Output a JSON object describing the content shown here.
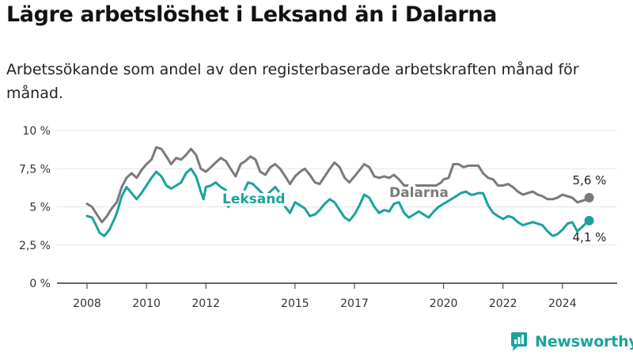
{
  "title": "Lägre arbetslöshet i Leksand än i Dalarna",
  "subtitle": "Arbetssökande som andel av den registerbaserade arbetskraften månad för månad.",
  "brand": {
    "name": "Newsworthy",
    "icon": "newsworthy-logo-icon"
  },
  "colors": {
    "leksand": "#1aa39b",
    "dalarna": "#7a7a7a",
    "axis": "#333333",
    "grid": "#e6e6e6"
  },
  "chart_data": {
    "type": "line",
    "x_range": [
      2008,
      2024.9
    ],
    "ylim": [
      0,
      10
    ],
    "y_ticks": [
      0,
      2.5,
      5,
      7.5,
      10
    ],
    "y_tick_labels": [
      "0 %",
      "2,5 %",
      "5 %",
      "7,5 %",
      "10 %"
    ],
    "x_ticks": [
      2008,
      2010,
      2012,
      2015,
      2017,
      2020,
      2022,
      2024
    ],
    "x_tick_labels": [
      "2008",
      "2010",
      "2012",
      "2015",
      "2017",
      "2020",
      "2022",
      "2024"
    ],
    "grid": "horizontal",
    "series": [
      {
        "name": "Dalarna",
        "key": "dalarna",
        "end_label": "5,6 %",
        "points": [
          [
            2008.0,
            5.2
          ],
          [
            2008.17,
            5.0
          ],
          [
            2008.33,
            4.5
          ],
          [
            2008.5,
            4.0
          ],
          [
            2008.67,
            4.4
          ],
          [
            2008.83,
            4.9
          ],
          [
            2009.0,
            5.3
          ],
          [
            2009.17,
            6.3
          ],
          [
            2009.33,
            6.9
          ],
          [
            2009.5,
            7.2
          ],
          [
            2009.67,
            6.9
          ],
          [
            2009.83,
            7.4
          ],
          [
            2010.0,
            7.8
          ],
          [
            2010.17,
            8.1
          ],
          [
            2010.33,
            8.9
          ],
          [
            2010.5,
            8.8
          ],
          [
            2010.67,
            8.3
          ],
          [
            2010.83,
            7.8
          ],
          [
            2011.0,
            8.2
          ],
          [
            2011.17,
            8.1
          ],
          [
            2011.33,
            8.4
          ],
          [
            2011.5,
            8.8
          ],
          [
            2011.67,
            8.4
          ],
          [
            2011.83,
            7.5
          ],
          [
            2012.0,
            7.3
          ],
          [
            2012.17,
            7.6
          ],
          [
            2012.33,
            7.9
          ],
          [
            2012.5,
            8.2
          ],
          [
            2012.67,
            8.0
          ],
          [
            2012.83,
            7.5
          ],
          [
            2013.0,
            7.0
          ],
          [
            2013.17,
            7.8
          ],
          [
            2013.33,
            8.0
          ],
          [
            2013.5,
            8.3
          ],
          [
            2013.67,
            8.1
          ],
          [
            2013.83,
            7.3
          ],
          [
            2014.0,
            7.1
          ],
          [
            2014.17,
            7.6
          ],
          [
            2014.33,
            7.8
          ],
          [
            2014.5,
            7.5
          ],
          [
            2014.67,
            7.0
          ],
          [
            2014.83,
            6.5
          ],
          [
            2015.0,
            7.0
          ],
          [
            2015.17,
            7.3
          ],
          [
            2015.33,
            7.5
          ],
          [
            2015.5,
            7.1
          ],
          [
            2015.67,
            6.6
          ],
          [
            2015.83,
            6.5
          ],
          [
            2016.0,
            7.0
          ],
          [
            2016.17,
            7.5
          ],
          [
            2016.33,
            7.9
          ],
          [
            2016.5,
            7.6
          ],
          [
            2016.67,
            6.9
          ],
          [
            2016.83,
            6.6
          ],
          [
            2017.0,
            7.0
          ],
          [
            2017.17,
            7.4
          ],
          [
            2017.33,
            7.8
          ],
          [
            2017.5,
            7.6
          ],
          [
            2017.67,
            7.0
          ],
          [
            2017.83,
            6.9
          ],
          [
            2018.0,
            7.0
          ],
          [
            2018.17,
            6.9
          ],
          [
            2018.33,
            7.1
          ],
          [
            2018.5,
            6.8
          ],
          [
            2018.67,
            6.4
          ],
          [
            2019.75,
            6.4
          ],
          [
            2019.92,
            6.6
          ],
          [
            2020.0,
            6.8
          ],
          [
            2020.17,
            6.9
          ],
          [
            2020.33,
            7.8
          ],
          [
            2020.5,
            7.8
          ],
          [
            2020.67,
            7.6
          ],
          [
            2020.83,
            7.7
          ],
          [
            2021.0,
            7.7
          ],
          [
            2021.17,
            7.7
          ],
          [
            2021.33,
            7.2
          ],
          [
            2021.5,
            6.9
          ],
          [
            2021.67,
            6.8
          ],
          [
            2021.83,
            6.4
          ],
          [
            2022.0,
            6.4
          ],
          [
            2022.17,
            6.5
          ],
          [
            2022.33,
            6.3
          ],
          [
            2022.5,
            6.0
          ],
          [
            2022.67,
            5.8
          ],
          [
            2022.83,
            5.9
          ],
          [
            2023.0,
            6.0
          ],
          [
            2023.17,
            5.8
          ],
          [
            2023.33,
            5.7
          ],
          [
            2023.5,
            5.5
          ],
          [
            2023.67,
            5.5
          ],
          [
            2023.83,
            5.6
          ],
          [
            2024.0,
            5.8
          ],
          [
            2024.17,
            5.7
          ],
          [
            2024.33,
            5.6
          ],
          [
            2024.5,
            5.3
          ],
          [
            2024.67,
            5.4
          ],
          [
            2024.83,
            5.5
          ],
          [
            2024.9,
            5.6
          ]
        ]
      },
      {
        "name": "Leksand",
        "key": "leksand",
        "end_label": "4,1 %",
        "points": [
          [
            2008.0,
            4.4
          ],
          [
            2008.17,
            4.3
          ],
          [
            2008.33,
            3.7
          ],
          [
            2008.42,
            3.3
          ],
          [
            2008.58,
            3.1
          ],
          [
            2008.75,
            3.5
          ],
          [
            2008.92,
            4.2
          ],
          [
            2009.0,
            4.6
          ],
          [
            2009.17,
            5.7
          ],
          [
            2009.33,
            6.3
          ],
          [
            2009.5,
            5.9
          ],
          [
            2009.67,
            5.5
          ],
          [
            2009.83,
            5.9
          ],
          [
            2010.0,
            6.4
          ],
          [
            2010.17,
            6.9
          ],
          [
            2010.33,
            7.3
          ],
          [
            2010.5,
            7.0
          ],
          [
            2010.67,
            6.4
          ],
          [
            2010.83,
            6.2
          ],
          [
            2011.0,
            6.4
          ],
          [
            2011.17,
            6.6
          ],
          [
            2011.33,
            7.2
          ],
          [
            2011.5,
            7.5
          ],
          [
            2011.67,
            7.0
          ],
          [
            2011.83,
            6.0
          ],
          [
            2011.92,
            5.5
          ],
          [
            2012.0,
            6.3
          ],
          [
            2012.17,
            6.4
          ],
          [
            2012.33,
            6.6
          ],
          [
            2012.5,
            6.3
          ],
          [
            2012.67,
            6.1
          ],
          [
            2012.75,
            5.0
          ],
          [
            2013.25,
            5.9
          ],
          [
            2013.42,
            6.6
          ],
          [
            2013.58,
            6.5
          ],
          [
            2014.0,
            5.7
          ],
          [
            2014.17,
            6.0
          ],
          [
            2014.33,
            6.3
          ],
          [
            2014.5,
            5.9
          ],
          [
            2014.67,
            5.0
          ],
          [
            2014.83,
            4.6
          ],
          [
            2015.0,
            5.3
          ],
          [
            2015.17,
            5.1
          ],
          [
            2015.33,
            4.9
          ],
          [
            2015.5,
            4.4
          ],
          [
            2015.67,
            4.5
          ],
          [
            2015.83,
            4.8
          ],
          [
            2016.0,
            5.2
          ],
          [
            2016.17,
            5.5
          ],
          [
            2016.33,
            5.3
          ],
          [
            2016.5,
            4.8
          ],
          [
            2016.67,
            4.3
          ],
          [
            2016.83,
            4.1
          ],
          [
            2017.0,
            4.5
          ],
          [
            2017.17,
            5.1
          ],
          [
            2017.33,
            5.8
          ],
          [
            2017.5,
            5.6
          ],
          [
            2017.67,
            5.0
          ],
          [
            2017.83,
            4.6
          ],
          [
            2018.0,
            4.8
          ],
          [
            2018.17,
            4.7
          ],
          [
            2018.33,
            5.2
          ],
          [
            2018.5,
            5.3
          ],
          [
            2018.67,
            4.6
          ],
          [
            2018.83,
            4.3
          ],
          [
            2019.0,
            4.5
          ],
          [
            2019.17,
            4.7
          ],
          [
            2019.33,
            4.5
          ],
          [
            2019.5,
            4.3
          ],
          [
            2019.67,
            4.7
          ],
          [
            2019.83,
            5.0
          ],
          [
            2020.0,
            5.2
          ],
          [
            2020.17,
            5.4
          ],
          [
            2020.42,
            5.7
          ],
          [
            2020.58,
            5.9
          ],
          [
            2020.75,
            6.0
          ],
          [
            2020.92,
            5.8
          ],
          [
            2021.0,
            5.8
          ],
          [
            2021.17,
            5.9
          ],
          [
            2021.33,
            5.9
          ],
          [
            2021.5,
            5.1
          ],
          [
            2021.67,
            4.6
          ],
          [
            2021.83,
            4.4
          ],
          [
            2022.0,
            4.2
          ],
          [
            2022.17,
            4.4
          ],
          [
            2022.33,
            4.3
          ],
          [
            2022.5,
            4.0
          ],
          [
            2022.67,
            3.8
          ],
          [
            2022.83,
            3.9
          ],
          [
            2023.0,
            4.0
          ],
          [
            2023.17,
            3.9
          ],
          [
            2023.33,
            3.8
          ],
          [
            2023.5,
            3.4
          ],
          [
            2023.67,
            3.1
          ],
          [
            2023.83,
            3.2
          ],
          [
            2024.0,
            3.5
          ],
          [
            2024.17,
            3.9
          ],
          [
            2024.33,
            4.0
          ],
          [
            2024.5,
            3.4
          ],
          [
            2024.67,
            3.7
          ],
          [
            2024.83,
            4.0
          ],
          [
            2024.9,
            4.1
          ]
        ]
      }
    ]
  }
}
